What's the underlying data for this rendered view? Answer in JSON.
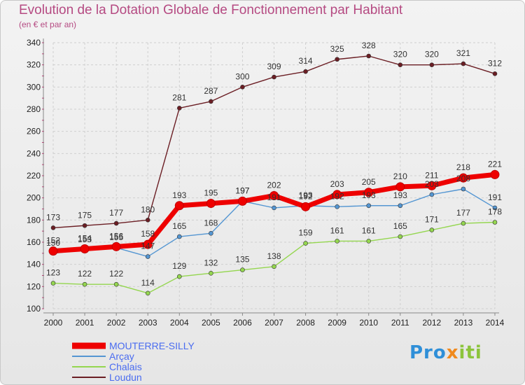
{
  "title": "Evolution de la Dotation Globale de Fonctionnement par Habitant",
  "subtitle": "(en € et par an)",
  "logo": {
    "part1": "Pro",
    "part2": "x",
    "part3": "iti"
  },
  "chart_data": {
    "type": "line",
    "title": "Evolution de la Dotation Globale de Fonctionnement par Habitant",
    "subtitle": "(en € et par an)",
    "xlabel": "",
    "ylabel": "",
    "x": [
      "2000",
      "2001",
      "2002",
      "2003",
      "2004",
      "2005",
      "2006",
      "2007",
      "2008",
      "2009",
      "2010",
      "2011",
      "2012",
      "2013",
      "2014"
    ],
    "ylim": [
      100,
      340
    ],
    "yticks": [
      100,
      120,
      140,
      160,
      180,
      200,
      220,
      240,
      260,
      280,
      300,
      320,
      340
    ],
    "grid": true,
    "legend_position": "bottom-left",
    "series": [
      {
        "name": "Loudun",
        "color": "#6b1e24",
        "values": [
          173,
          175,
          177,
          180,
          281,
          287,
          300,
          309,
          314,
          325,
          328,
          320,
          320,
          321,
          312
        ]
      },
      {
        "name": "Chalais",
        "color": "#94d64f",
        "values": [
          123,
          122,
          122,
          114,
          129,
          132,
          135,
          138,
          159,
          161,
          161,
          165,
          171,
          177,
          178
        ]
      },
      {
        "name": "Arçay",
        "color": "#5496d2",
        "values": [
          150,
          153,
          155,
          147,
          165,
          168,
          197,
          191,
          193,
          192,
          193,
          193,
          203,
          208,
          191
        ]
      },
      {
        "name": "MOUTERRE-SILLY",
        "color": "#ee0000",
        "values": [
          152,
          154,
          156,
          158,
          193,
          195,
          197,
          202,
          192,
          203,
          205,
          210,
          211,
          218,
          221
        ]
      }
    ]
  }
}
